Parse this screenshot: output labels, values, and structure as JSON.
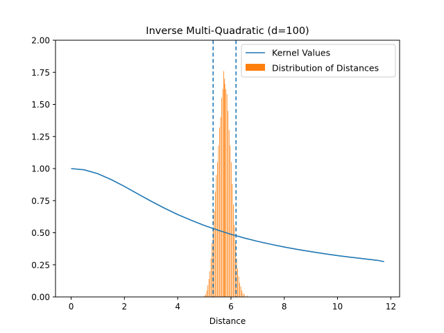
{
  "chart_data": {
    "type": "bar",
    "title": "Inverse Multi-Quadratic (d=100)",
    "xlabel": "Distance",
    "ylabel": "",
    "xlim": [
      -0.587,
      12.33
    ],
    "ylim": [
      0,
      2.0
    ],
    "xticks": [
      0,
      2,
      4,
      6,
      8,
      10,
      12
    ],
    "yticks": [
      0.0,
      0.25,
      0.5,
      0.75,
      1.0,
      1.25,
      1.5,
      1.75,
      2.0
    ],
    "grid": false,
    "legend_position": "top-right",
    "series": [
      {
        "name": "Kernel Values",
        "kind": "line",
        "color": "#1f77b4",
        "x": [
          0,
          0.5,
          1,
          1.5,
          2,
          2.5,
          3,
          3.5,
          4,
          4.5,
          5,
          5.5,
          6,
          6.5,
          7,
          7.5,
          8,
          8.5,
          9,
          9.5,
          10,
          10.5,
          11,
          11.5,
          11.75
        ],
        "y": [
          1.0,
          0.99,
          0.96,
          0.915,
          0.861,
          0.803,
          0.746,
          0.692,
          0.642,
          0.598,
          0.557,
          0.521,
          0.488,
          0.459,
          0.433,
          0.41,
          0.389,
          0.37,
          0.353,
          0.337,
          0.322,
          0.309,
          0.297,
          0.285,
          0.275
        ]
      },
      {
        "name": "Distribution of Distances",
        "kind": "histogram",
        "color": "#ff7f0e",
        "bin_width": 0.02,
        "bins": [
          [
            5.0,
            0.01
          ],
          [
            5.04,
            0.02
          ],
          [
            5.08,
            0.05
          ],
          [
            5.12,
            0.09
          ],
          [
            5.16,
            0.14
          ],
          [
            5.2,
            0.2
          ],
          [
            5.24,
            0.3
          ],
          [
            5.28,
            0.42
          ],
          [
            5.32,
            0.53
          ],
          [
            5.36,
            0.67
          ],
          [
            5.4,
            0.82
          ],
          [
            5.44,
            0.95
          ],
          [
            5.48,
            1.05
          ],
          [
            5.52,
            1.18
          ],
          [
            5.56,
            1.32
          ],
          [
            5.6,
            1.4
          ],
          [
            5.64,
            1.55
          ],
          [
            5.68,
            1.62
          ],
          [
            5.72,
            1.76
          ],
          [
            5.74,
            1.7
          ],
          [
            5.76,
            1.66
          ],
          [
            5.8,
            1.62
          ],
          [
            5.84,
            1.58
          ],
          [
            5.88,
            1.45
          ],
          [
            5.92,
            1.3
          ],
          [
            5.96,
            1.18
          ],
          [
            6.0,
            1.05
          ],
          [
            6.04,
            0.88
          ],
          [
            6.08,
            0.72
          ],
          [
            6.12,
            0.56
          ],
          [
            6.16,
            0.42
          ],
          [
            6.2,
            0.3
          ],
          [
            6.24,
            0.22
          ],
          [
            6.28,
            0.16
          ],
          [
            6.32,
            0.11
          ],
          [
            6.36,
            0.08
          ],
          [
            6.4,
            0.05
          ],
          [
            6.44,
            0.03
          ],
          [
            6.5,
            0.02
          ],
          [
            6.6,
            0.01
          ]
        ]
      }
    ],
    "vlines": [
      {
        "x": 5.33,
        "style": "dashed",
        "color": "#1f77b4"
      },
      {
        "x": 6.19,
        "style": "dashed",
        "color": "#1f77b4"
      }
    ]
  }
}
